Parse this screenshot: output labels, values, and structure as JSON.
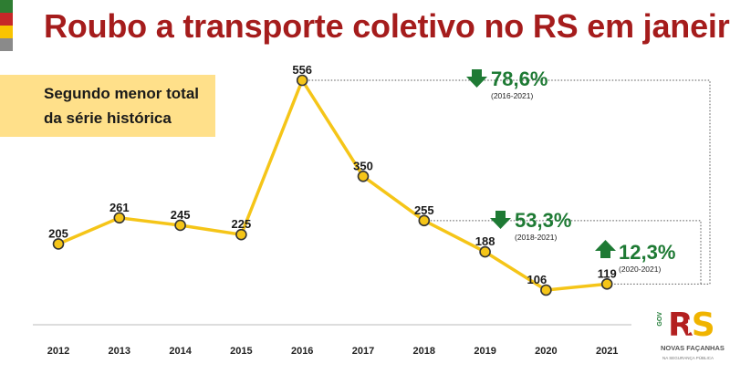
{
  "title": "Roubo a transporte coletivo no RS em janeiro",
  "note": {
    "line1": "Segundo menor total",
    "line2": "da série histórica"
  },
  "colors": {
    "title": "#a51c1c",
    "line": "#f5c518",
    "point_stroke": "#333333",
    "note_bg": "#ffe08a",
    "down_arrow": "#1e7a34",
    "up_arrow": "#1e7a34",
    "pct_text": "#1e7a34",
    "stripes": [
      "#2e7d32",
      "#c62828",
      "#f9c400",
      "#8a8a8a"
    ]
  },
  "chart_data": {
    "type": "line",
    "title": "Roubo a transporte coletivo no RS em janeiro",
    "xlabel": "",
    "ylabel": "",
    "grid": false,
    "categories": [
      "2012",
      "2013",
      "2014",
      "2015",
      "2016",
      "2017",
      "2018",
      "2019",
      "2020",
      "2021"
    ],
    "values": [
      205,
      261,
      245,
      225,
      556,
      350,
      255,
      188,
      106,
      119
    ],
    "ylim": [
      0,
      600
    ],
    "annotations": [
      {
        "direction": "down",
        "pct": "78,6%",
        "range": "(2016-2021)",
        "from": "2016",
        "to": "2021"
      },
      {
        "direction": "down",
        "pct": "53,3%",
        "range": "(2018-2021)",
        "from": "2018",
        "to": "2021"
      },
      {
        "direction": "up",
        "pct": "12,3%",
        "range": "(2020-2021)",
        "from": "2020",
        "to": "2021"
      }
    ]
  },
  "logo": {
    "gov": "GOV",
    "rs_r": "R",
    "rs_s": "S",
    "tagline": "NOVAS FAÇANHAS",
    "subtag": "NA SEGURANÇA PÚBLICA"
  }
}
